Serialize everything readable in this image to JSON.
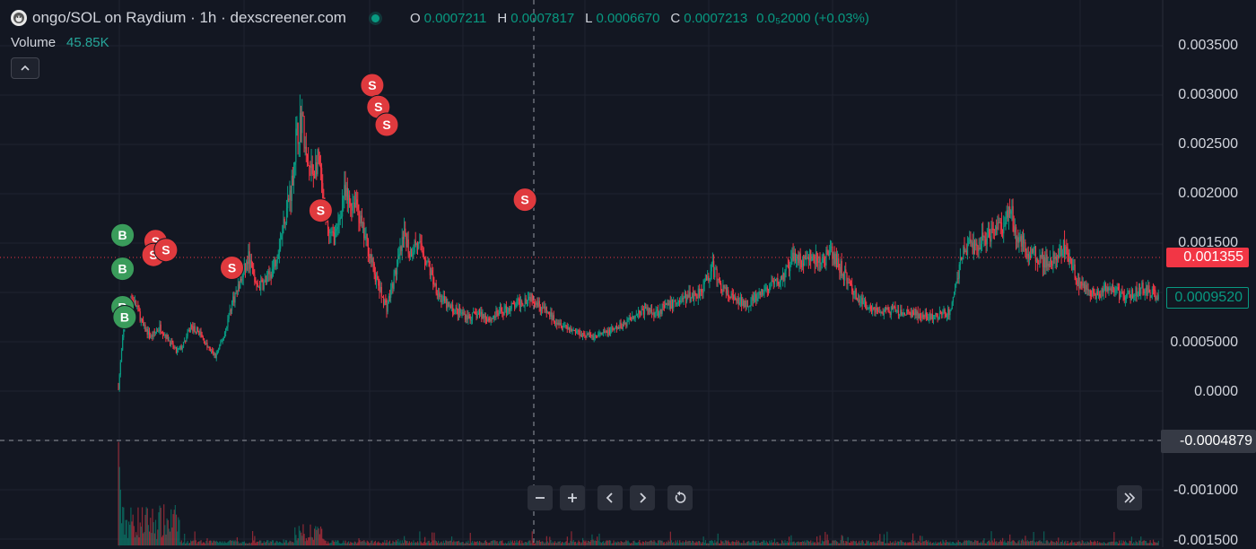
{
  "legend": {
    "title": "ongo/SOL on Raydium · 1h · dexscreener.com",
    "avatar_icon": "monkey-avatar-icon",
    "ohlc": [
      {
        "key": "O",
        "value": "0.0007211"
      },
      {
        "key": "H",
        "value": "0.0007817"
      },
      {
        "key": "L",
        "value": "0.0006670"
      },
      {
        "key": "C",
        "value": "0.0007213"
      }
    ],
    "change": "0.0₅2000 (+0.03%)"
  },
  "volume": {
    "label": "Volume",
    "value": "45.85K"
  },
  "price_axis": {
    "ticks": [
      "0.003500",
      "0.003000",
      "0.002500",
      "0.002000",
      "0.001500",
      "0.0005000",
      "0.0000",
      "-0.001000",
      "-0.001500"
    ],
    "last_price": "0.001355",
    "current_price": "0.0009520",
    "crosshair_price": "-0.0004879"
  },
  "controls": {
    "zoom_out_icon": "minus-icon",
    "zoom_in_icon": "plus-icon",
    "scroll_left_icon": "chevron-left-icon",
    "scroll_right_icon": "chevron-right-icon",
    "reset_icon": "reset-icon",
    "scroll_to_realtime_icon": "double-chevron-right-icon",
    "collapse_icon": "chevron-up-icon"
  },
  "colors": {
    "background": "#131722",
    "up": "#089981",
    "down": "#f23645",
    "grid": "#1f2330",
    "text": "#d1d4dc"
  },
  "chart_data": {
    "type": "candlestick",
    "pair": "ongo/SOL",
    "interval": "1h",
    "ylim": [
      -0.0015,
      0.0035
    ],
    "trend": [
      [
        0,
        5e-05
      ],
      [
        6,
        0.00075
      ],
      [
        12,
        0.00095
      ],
      [
        18,
        0.00085
      ],
      [
        24,
        0.00065
      ],
      [
        32,
        0.00055
      ],
      [
        40,
        0.00065
      ],
      [
        50,
        0.0005
      ],
      [
        56,
        0.0004
      ],
      [
        62,
        0.00045
      ],
      [
        70,
        0.00065
      ],
      [
        78,
        0.0006
      ],
      [
        86,
        0.00045
      ],
      [
        94,
        0.00035
      ],
      [
        102,
        0.00055
      ],
      [
        110,
        0.0009
      ],
      [
        118,
        0.0011
      ],
      [
        126,
        0.00135
      ],
      [
        134,
        0.00105
      ],
      [
        142,
        0.0011
      ],
      [
        150,
        0.00125
      ],
      [
        156,
        0.0015
      ],
      [
        162,
        0.0018
      ],
      [
        168,
        0.0021
      ],
      [
        172,
        0.00255
      ],
      [
        178,
        0.0028
      ],
      [
        182,
        0.0023
      ],
      [
        188,
        0.0022
      ],
      [
        194,
        0.00235
      ],
      [
        200,
        0.00175
      ],
      [
        206,
        0.00155
      ],
      [
        212,
        0.0016
      ],
      [
        218,
        0.002
      ],
      [
        224,
        0.0019
      ],
      [
        230,
        0.00195
      ],
      [
        236,
        0.00165
      ],
      [
        242,
        0.00145
      ],
      [
        248,
        0.0012
      ],
      [
        254,
        0.001
      ],
      [
        260,
        0.00085
      ],
      [
        266,
        0.0011
      ],
      [
        272,
        0.00135
      ],
      [
        278,
        0.0016
      ],
      [
        282,
        0.0014
      ],
      [
        288,
        0.0015
      ],
      [
        296,
        0.0014
      ],
      [
        304,
        0.00115
      ],
      [
        312,
        0.00095
      ],
      [
        320,
        0.00085
      ],
      [
        330,
        0.0008
      ],
      [
        340,
        0.00075
      ],
      [
        350,
        0.00078
      ],
      [
        360,
        0.00073
      ],
      [
        370,
        0.0008
      ],
      [
        380,
        0.00085
      ],
      [
        390,
        0.0009
      ],
      [
        400,
        0.00097
      ],
      [
        410,
        0.00085
      ],
      [
        420,
        0.00075
      ],
      [
        430,
        0.00068
      ],
      [
        440,
        0.00062
      ],
      [
        450,
        0.00058
      ],
      [
        460,
        0.00055
      ],
      [
        470,
        0.00058
      ],
      [
        480,
        0.00062
      ],
      [
        490,
        0.00068
      ],
      [
        500,
        0.00078
      ],
      [
        510,
        0.00082
      ],
      [
        520,
        0.0008
      ],
      [
        530,
        0.00085
      ],
      [
        540,
        0.0009
      ],
      [
        550,
        0.00095
      ],
      [
        560,
        0.00098
      ],
      [
        568,
        0.00108
      ],
      [
        576,
        0.00125
      ],
      [
        582,
        0.0011
      ],
      [
        590,
        0.00098
      ],
      [
        600,
        0.0009
      ],
      [
        610,
        0.0009
      ],
      [
        620,
        0.00095
      ],
      [
        630,
        0.00105
      ],
      [
        640,
        0.0011
      ],
      [
        650,
        0.00125
      ],
      [
        656,
        0.0014
      ],
      [
        662,
        0.0013
      ],
      [
        670,
        0.00135
      ],
      [
        680,
        0.0013
      ],
      [
        690,
        0.0014
      ],
      [
        700,
        0.00125
      ],
      [
        710,
        0.00105
      ],
      [
        720,
        0.0009
      ],
      [
        730,
        0.00085
      ],
      [
        740,
        0.0008
      ],
      [
        750,
        0.00082
      ],
      [
        760,
        0.00078
      ],
      [
        770,
        0.0008
      ],
      [
        780,
        0.00075
      ],
      [
        790,
        0.00075
      ],
      [
        800,
        0.00078
      ],
      [
        806,
        0.0008
      ],
      [
        812,
        0.0011
      ],
      [
        818,
        0.0014
      ],
      [
        824,
        0.0015
      ],
      [
        830,
        0.00145
      ],
      [
        838,
        0.00155
      ],
      [
        846,
        0.0016
      ],
      [
        852,
        0.00175
      ],
      [
        858,
        0.00165
      ],
      [
        864,
        0.0019
      ],
      [
        870,
        0.0016
      ],
      [
        878,
        0.00145
      ],
      [
        886,
        0.0014
      ],
      [
        894,
        0.00135
      ],
      [
        900,
        0.0013
      ],
      [
        908,
        0.00135
      ],
      [
        914,
        0.0014
      ],
      [
        918,
        0.0015
      ],
      [
        922,
        0.00135
      ],
      [
        930,
        0.0011
      ],
      [
        940,
        0.001
      ],
      [
        950,
        0.00098
      ],
      [
        960,
        0.00105
      ],
      [
        968,
        0.001
      ],
      [
        976,
        0.00095
      ],
      [
        984,
        0.001
      ],
      [
        992,
        0.00105
      ],
      [
        1000,
        0.001
      ],
      [
        1008,
        0.00095
      ]
    ],
    "signals": [
      {
        "label": "B",
        "type": "buy",
        "x": 4,
        "y": 0.00158
      },
      {
        "label": "B",
        "type": "buy",
        "x": 4,
        "y": 0.00124
      },
      {
        "label": "B",
        "type": "buy",
        "x": 4,
        "y": 0.00085
      },
      {
        "label": "B",
        "type": "buy",
        "x": 6,
        "y": 0.00075
      },
      {
        "label": "S",
        "type": "sell",
        "x": 36,
        "y": 0.00152
      },
      {
        "label": "S",
        "type": "sell",
        "x": 34,
        "y": 0.00138
      },
      {
        "label": "S",
        "type": "sell",
        "x": 46,
        "y": 0.00143
      },
      {
        "label": "S",
        "type": "sell",
        "x": 110,
        "y": 0.00125
      },
      {
        "label": "S",
        "type": "sell",
        "x": 196,
        "y": 0.00183
      },
      {
        "label": "S",
        "type": "sell",
        "x": 246,
        "y": 0.0031
      },
      {
        "label": "S",
        "type": "sell",
        "x": 252,
        "y": 0.00288
      },
      {
        "label": "S",
        "type": "sell",
        "x": 260,
        "y": 0.0027
      },
      {
        "label": "S",
        "type": "sell",
        "x": 394,
        "y": 0.00194
      }
    ]
  }
}
